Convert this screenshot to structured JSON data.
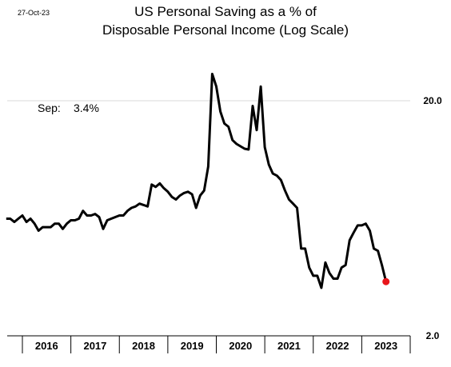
{
  "date_stamp": "27-Oct-23",
  "annotation": {
    "label": "Sep:",
    "value": "3.4%"
  },
  "colors": {
    "line": "#000000",
    "last_point": "#e8161b",
    "gridline": "#d9d9d9"
  },
  "chart_data": {
    "type": "line",
    "title": "US Personal Saving as a % of",
    "subtitle": "Disposable Personal Income (Log Scale)",
    "xlabel": "",
    "ylabel": "",
    "y_scale": "log",
    "ylim": [
      2.0,
      20.0
    ],
    "y_ticks": [
      "2.0",
      "20.0"
    ],
    "y_axis_position": "right",
    "x_categories": [
      "2016",
      "2017",
      "2018",
      "2019",
      "2020",
      "2021",
      "2022",
      "2023"
    ],
    "grid": false,
    "series": [
      {
        "values": [
          [
            "2015-09",
            6.3
          ],
          [
            "2015-10",
            6.3
          ],
          [
            "2015-11",
            6.1
          ],
          [
            "2015-12",
            6.3
          ],
          [
            "2016-01",
            6.5
          ],
          [
            "2016-02",
            6.1
          ],
          [
            "2016-03",
            6.3
          ],
          [
            "2016-04",
            6.0
          ],
          [
            "2016-05",
            5.6
          ],
          [
            "2016-06",
            5.8
          ],
          [
            "2016-07",
            5.8
          ],
          [
            "2016-08",
            5.8
          ],
          [
            "2016-09",
            6.0
          ],
          [
            "2016-10",
            6.0
          ],
          [
            "2016-11",
            5.7
          ],
          [
            "2016-12",
            6.0
          ],
          [
            "2017-01",
            6.2
          ],
          [
            "2017-02",
            6.2
          ],
          [
            "2017-03",
            6.3
          ],
          [
            "2017-04",
            6.8
          ],
          [
            "2017-05",
            6.5
          ],
          [
            "2017-06",
            6.5
          ],
          [
            "2017-07",
            6.6
          ],
          [
            "2017-08",
            6.4
          ],
          [
            "2017-09",
            5.7
          ],
          [
            "2017-10",
            6.2
          ],
          [
            "2017-11",
            6.3
          ],
          [
            "2017-12",
            6.4
          ],
          [
            "2018-01",
            6.5
          ],
          [
            "2018-02",
            6.5
          ],
          [
            "2018-03",
            6.8
          ],
          [
            "2018-04",
            7.0
          ],
          [
            "2018-05",
            7.1
          ],
          [
            "2018-06",
            7.3
          ],
          [
            "2018-07",
            7.2
          ],
          [
            "2018-08",
            7.1
          ],
          [
            "2018-09",
            8.8
          ],
          [
            "2018-10",
            8.6
          ],
          [
            "2018-11",
            8.9
          ],
          [
            "2018-12",
            8.5
          ],
          [
            "2019-01",
            8.2
          ],
          [
            "2019-02",
            7.8
          ],
          [
            "2019-03",
            7.6
          ],
          [
            "2019-04",
            7.9
          ],
          [
            "2019-05",
            8.1
          ],
          [
            "2019-06",
            8.2
          ],
          [
            "2019-07",
            8.0
          ],
          [
            "2019-08",
            7.0
          ],
          [
            "2019-09",
            7.9
          ],
          [
            "2019-10",
            8.3
          ],
          [
            "2019-11",
            10.5
          ],
          [
            "2019-12",
            26.0
          ],
          [
            "2020-01",
            23.0
          ],
          [
            "2020-02",
            18.0
          ],
          [
            "2020-03",
            16.0
          ],
          [
            "2020-04",
            15.5
          ],
          [
            "2020-05",
            13.6
          ],
          [
            "2020-06",
            13.1
          ],
          [
            "2020-07",
            12.8
          ],
          [
            "2020-08",
            12.5
          ],
          [
            "2020-09",
            12.4
          ],
          [
            "2020-10",
            19.0
          ],
          [
            "2020-11",
            15.0
          ],
          [
            "2020-12",
            23.0
          ],
          [
            "2021-01",
            12.7
          ],
          [
            "2021-02",
            10.7
          ],
          [
            "2021-03",
            9.8
          ],
          [
            "2021-04",
            9.6
          ],
          [
            "2021-05",
            9.2
          ],
          [
            "2021-06",
            8.3
          ],
          [
            "2021-07",
            7.6
          ],
          [
            "2021-08",
            7.3
          ],
          [
            "2021-09",
            7.0
          ],
          [
            "2021-10",
            4.7
          ],
          [
            "2021-11",
            4.7
          ],
          [
            "2021-12",
            3.9
          ],
          [
            "2022-01",
            3.6
          ],
          [
            "2022-02",
            3.6
          ],
          [
            "2022-03",
            3.2
          ],
          [
            "2022-04",
            4.1
          ],
          [
            "2022-05",
            3.7
          ],
          [
            "2022-06",
            3.5
          ],
          [
            "2022-07",
            3.5
          ],
          [
            "2022-08",
            3.9
          ],
          [
            "2022-09",
            4.0
          ],
          [
            "2022-10",
            5.1
          ],
          [
            "2022-11",
            5.5
          ],
          [
            "2022-12",
            5.9
          ],
          [
            "2023-01",
            5.9
          ],
          [
            "2023-02",
            6.0
          ],
          [
            "2023-03",
            5.6
          ],
          [
            "2023-04",
            4.7
          ],
          [
            "2023-05",
            4.6
          ],
          [
            "2023-06",
            4.0
          ],
          [
            "2023-07",
            3.4
          ]
        ]
      }
    ]
  }
}
